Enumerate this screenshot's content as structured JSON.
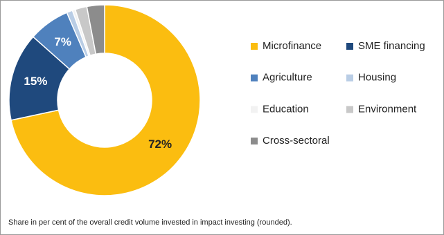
{
  "chart_data": {
    "type": "donut",
    "categories": [
      "Microfinance",
      "SME financing",
      "Agriculture",
      "Housing",
      "Education",
      "Environment",
      "Cross-sectoral"
    ],
    "values": [
      72,
      15,
      7,
      1,
      0.5,
      2,
      3
    ],
    "value_labels": [
      "72%",
      "15%",
      "7%",
      null,
      null,
      null,
      null
    ],
    "colors": [
      "#fbbd10",
      "#1f497d",
      "#4f81bd",
      "#b9cde5",
      "#f2f2f2",
      "#c8c8c8",
      "#8c8c8c"
    ],
    "footnote": "Share in per cent of the overall credit volume invested in impact investing (rounded)."
  }
}
